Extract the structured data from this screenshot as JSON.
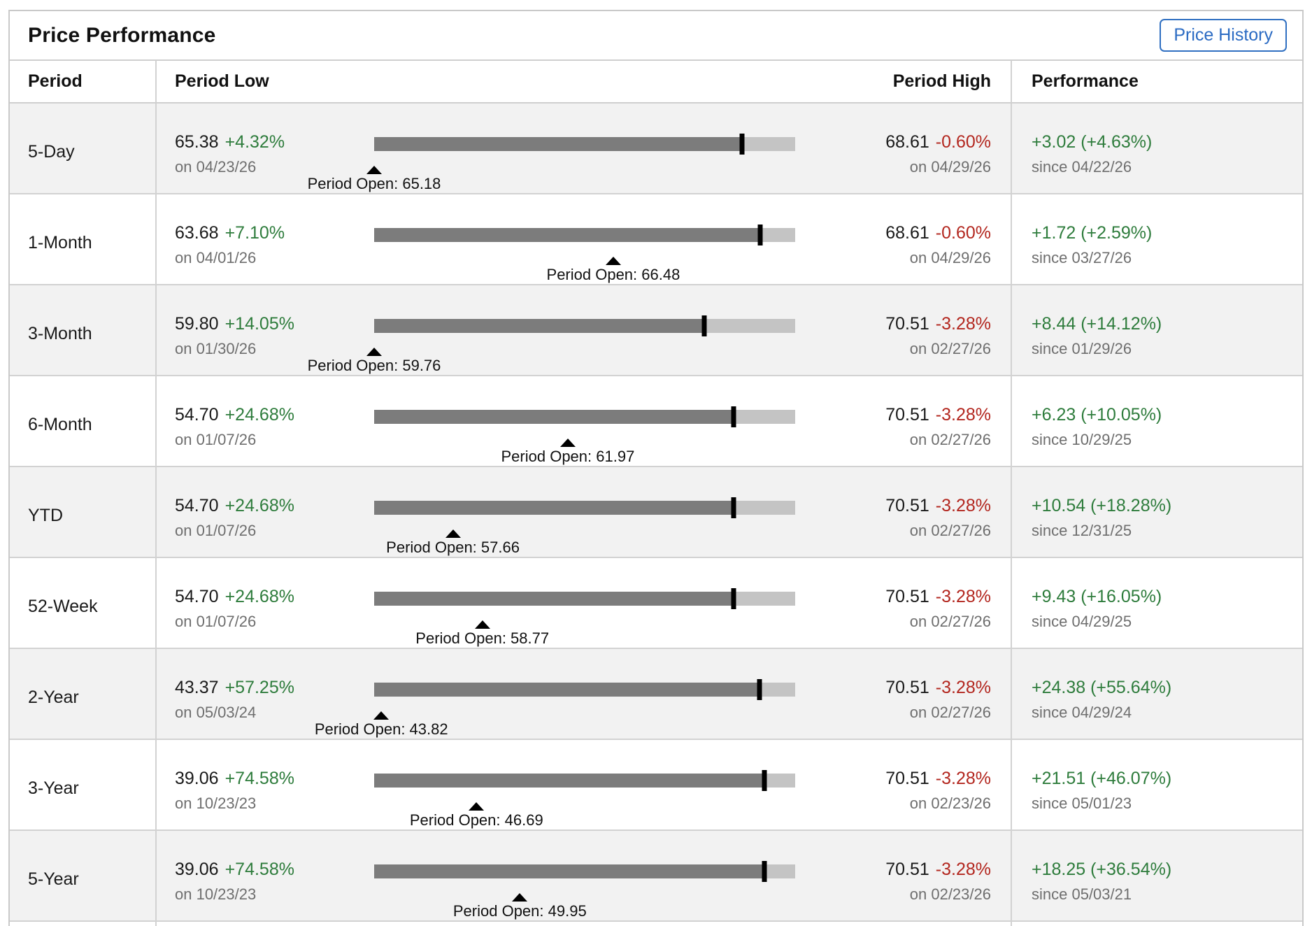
{
  "title": "Price Performance",
  "toolbar": {
    "price_history_label": "Price History"
  },
  "colors": {
    "positive": "#2e7c3c",
    "negative": "#b3271f",
    "accent_blue": "#2b6bc3",
    "bar_fill": "#7c7c7c",
    "bar_track": "#c4c4c4",
    "stripe": "#f2f2f2"
  },
  "table": {
    "headers": {
      "period": "Period",
      "low": "Period Low",
      "high": "Period High",
      "performance": "Performance"
    },
    "rows": [
      {
        "period": "5-Day",
        "low": {
          "price": "65.38",
          "change": "+4.32%",
          "date": "on 04/23/26"
        },
        "high": {
          "price": "68.61",
          "change": "-0.60%",
          "date": "on 04/29/26"
        },
        "open_label": "Period Open: 65.18",
        "performance": {
          "value": "+3.02 (+4.63%)",
          "since": "since 04/22/26"
        },
        "bar": {
          "tick_pct": 87.3,
          "open_pct": 0
        }
      },
      {
        "period": "1-Month",
        "low": {
          "price": "63.68",
          "change": "+7.10%",
          "date": "on 04/01/26"
        },
        "high": {
          "price": "68.61",
          "change": "-0.60%",
          "date": "on 04/29/26"
        },
        "open_label": "Period Open: 66.48",
        "performance": {
          "value": "+1.72 (+2.59%)",
          "since": "since 03/27/26"
        },
        "bar": {
          "tick_pct": 91.7,
          "open_pct": 56.8
        }
      },
      {
        "period": "3-Month",
        "low": {
          "price": "59.80",
          "change": "+14.05%",
          "date": "on 01/30/26"
        },
        "high": {
          "price": "70.51",
          "change": "-3.28%",
          "date": "on 02/27/26"
        },
        "open_label": "Period Open: 59.76",
        "performance": {
          "value": "+8.44 (+14.12%)",
          "since": "since 01/29/26"
        },
        "bar": {
          "tick_pct": 78.4,
          "open_pct": 0
        }
      },
      {
        "period": "6-Month",
        "low": {
          "price": "54.70",
          "change": "+24.68%",
          "date": "on 01/07/26"
        },
        "high": {
          "price": "70.51",
          "change": "-3.28%",
          "date": "on 02/27/26"
        },
        "open_label": "Period Open: 61.97",
        "performance": {
          "value": "+6.23 (+10.05%)",
          "since": "since 10/29/25"
        },
        "bar": {
          "tick_pct": 85.4,
          "open_pct": 46.0
        }
      },
      {
        "period": "YTD",
        "low": {
          "price": "54.70",
          "change": "+24.68%",
          "date": "on 01/07/26"
        },
        "high": {
          "price": "70.51",
          "change": "-3.28%",
          "date": "on 02/27/26"
        },
        "open_label": "Period Open: 57.66",
        "performance": {
          "value": "+10.54 (+18.28%)",
          "since": "since 12/31/25"
        },
        "bar": {
          "tick_pct": 85.4,
          "open_pct": 18.7
        }
      },
      {
        "period": "52-Week",
        "low": {
          "price": "54.70",
          "change": "+24.68%",
          "date": "on 01/07/26"
        },
        "high": {
          "price": "70.51",
          "change": "-3.28%",
          "date": "on 02/27/26"
        },
        "open_label": "Period Open: 58.77",
        "performance": {
          "value": "+9.43 (+16.05%)",
          "since": "since 04/29/25"
        },
        "bar": {
          "tick_pct": 85.4,
          "open_pct": 25.7
        }
      },
      {
        "period": "2-Year",
        "low": {
          "price": "43.37",
          "change": "+57.25%",
          "date": "on 05/03/24"
        },
        "high": {
          "price": "70.51",
          "change": "-3.28%",
          "date": "on 02/27/26"
        },
        "open_label": "Period Open: 43.82",
        "performance": {
          "value": "+24.38 (+55.64%)",
          "since": "since 04/29/24"
        },
        "bar": {
          "tick_pct": 91.5,
          "open_pct": 1.7
        }
      },
      {
        "period": "3-Year",
        "low": {
          "price": "39.06",
          "change": "+74.58%",
          "date": "on 10/23/23"
        },
        "high": {
          "price": "70.51",
          "change": "-3.28%",
          "date": "on 02/23/26"
        },
        "open_label": "Period Open: 46.69",
        "performance": {
          "value": "+21.51 (+46.07%)",
          "since": "since 05/01/23"
        },
        "bar": {
          "tick_pct": 92.7,
          "open_pct": 24.3
        }
      },
      {
        "period": "5-Year",
        "low": {
          "price": "39.06",
          "change": "+74.58%",
          "date": "on 10/23/23"
        },
        "high": {
          "price": "70.51",
          "change": "-3.28%",
          "date": "on 02/23/26"
        },
        "open_label": "Period Open: 49.95",
        "performance": {
          "value": "+18.25 (+36.54%)",
          "since": "since 05/03/21"
        },
        "bar": {
          "tick_pct": 92.7,
          "open_pct": 34.6
        }
      }
    ]
  }
}
